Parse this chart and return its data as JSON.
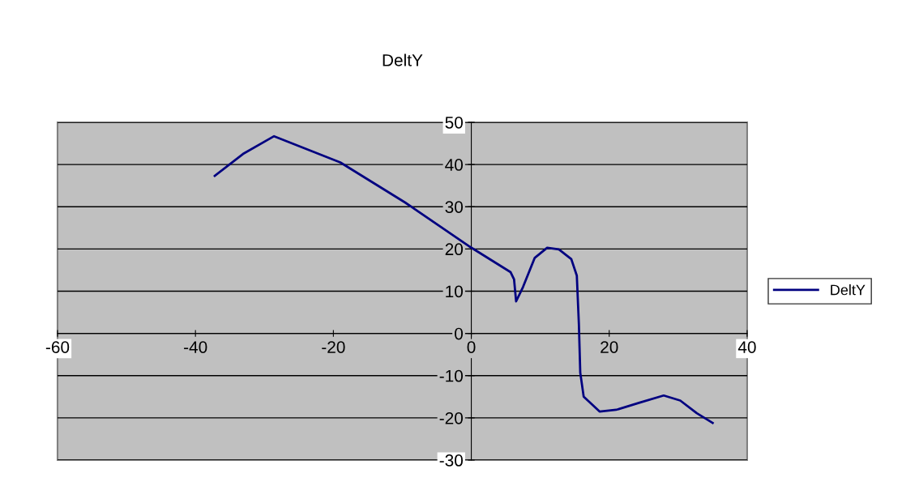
{
  "chart_data": {
    "type": "line",
    "title": "DeltY",
    "x": [
      -37.2,
      -33.1,
      -28.6,
      -19,
      -9.6,
      0,
      5.7,
      6.2,
      6.5,
      7.5,
      9.2,
      11,
      12.7,
      14.5,
      15.3,
      15.6,
      15.8,
      16.3,
      18.6,
      21,
      24.4,
      27.9,
      30.3,
      32.7,
      35
    ],
    "series": [
      {
        "name": "DeltY",
        "color": "#000080",
        "values": [
          37.3,
          42.5,
          46.7,
          40.5,
          31,
          20.3,
          14.5,
          12.8,
          7.6,
          11,
          17.9,
          20.3,
          19.9,
          17.6,
          13.7,
          2.2,
          -9.3,
          -15,
          -18.5,
          -18.1,
          -16.4,
          -14.7,
          -15.9,
          -18.9,
          -21.2
        ]
      }
    ],
    "xlim": [
      -60,
      40
    ],
    "xticks": [
      -60,
      -40,
      -20,
      0,
      20,
      40
    ],
    "ylim": [
      -30,
      50
    ],
    "yticks": [
      -30,
      -20,
      -10,
      0,
      10,
      20,
      30,
      40,
      50
    ],
    "grid": "y",
    "legend": "right",
    "marker": "none",
    "line_style": "solid"
  }
}
